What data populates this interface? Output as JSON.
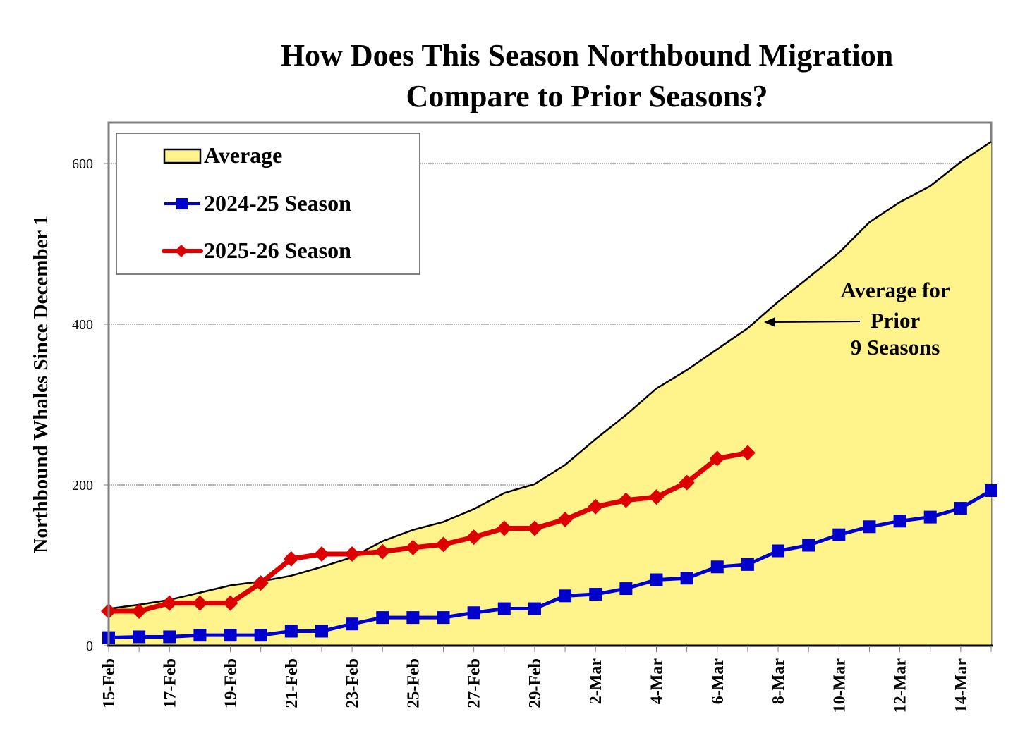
{
  "chart_data": {
    "type": "line",
    "title_lines": [
      "How Does This Season Northbound Migration",
      "Compare to Prior Seasons?"
    ],
    "xlabel": "",
    "ylabel": "Northbound Whales Since December 1",
    "ylim": [
      0,
      600
    ],
    "yticks": [
      0,
      200,
      400,
      600
    ],
    "grid": "horizontal dotted at 200, 400, 600",
    "legend_position": "top-left",
    "x": [
      "15-Feb",
      "16-Feb",
      "17-Feb",
      "18-Feb",
      "19-Feb",
      "20-Feb",
      "21-Feb",
      "22-Feb",
      "23-Feb",
      "24-Feb",
      "25-Feb",
      "26-Feb",
      "27-Feb",
      "28-Feb",
      "29-Feb",
      "1-Mar",
      "2-Mar",
      "3-Mar",
      "4-Mar",
      "5-Mar",
      "6-Mar",
      "7-Mar",
      "8-Mar",
      "9-Mar",
      "10-Mar",
      "11-Mar",
      "12-Mar",
      "13-Mar",
      "14-Mar",
      "15-Mar"
    ],
    "xtick_labels": [
      "15-Feb",
      "17-Feb",
      "19-Feb",
      "21-Feb",
      "23-Feb",
      "25-Feb",
      "27-Feb",
      "29-Feb",
      "2-Mar",
      "4-Mar",
      "6-Mar",
      "8-Mar",
      "10-Mar",
      "12-Mar",
      "14-Mar"
    ],
    "series": [
      {
        "name": "Average",
        "kind": "area",
        "color": "#FFF48C",
        "line_color": "#000000",
        "values": [
          46,
          51,
          57,
          66,
          75,
          80,
          87,
          98,
          110,
          130,
          144,
          154,
          170,
          190,
          201,
          225,
          257,
          287,
          320,
          343,
          369,
          395,
          428,
          458,
          489,
          527,
          552,
          572,
          602,
          627
        ]
      },
      {
        "name": "2024-25 Season",
        "kind": "line",
        "marker": "square",
        "color": "#0000CC",
        "values": [
          10,
          11,
          11,
          13,
          13,
          13,
          18,
          18,
          27,
          35,
          35,
          35,
          41,
          46,
          46,
          62,
          64,
          71,
          82,
          84,
          98,
          101,
          118,
          125,
          138,
          148,
          155,
          160,
          171,
          193
        ]
      },
      {
        "name": "2025-26 Season",
        "kind": "line",
        "marker": "diamond",
        "color": "#DD0000",
        "values": [
          43,
          43,
          53,
          53,
          53,
          78,
          108,
          114,
          114,
          117,
          122,
          126,
          135,
          146,
          146,
          157,
          173,
          181,
          185,
          203,
          233,
          240
        ]
      }
    ],
    "annotations": [
      {
        "lines": [
          "Average for",
          "Prior",
          "9 Seasons"
        ],
        "arrow_to": "Average",
        "arrow_target_x": "7-Mar"
      }
    ]
  },
  "legend": {
    "items": [
      "Average",
      "2024-25 Season",
      "2025-26 Season"
    ]
  }
}
